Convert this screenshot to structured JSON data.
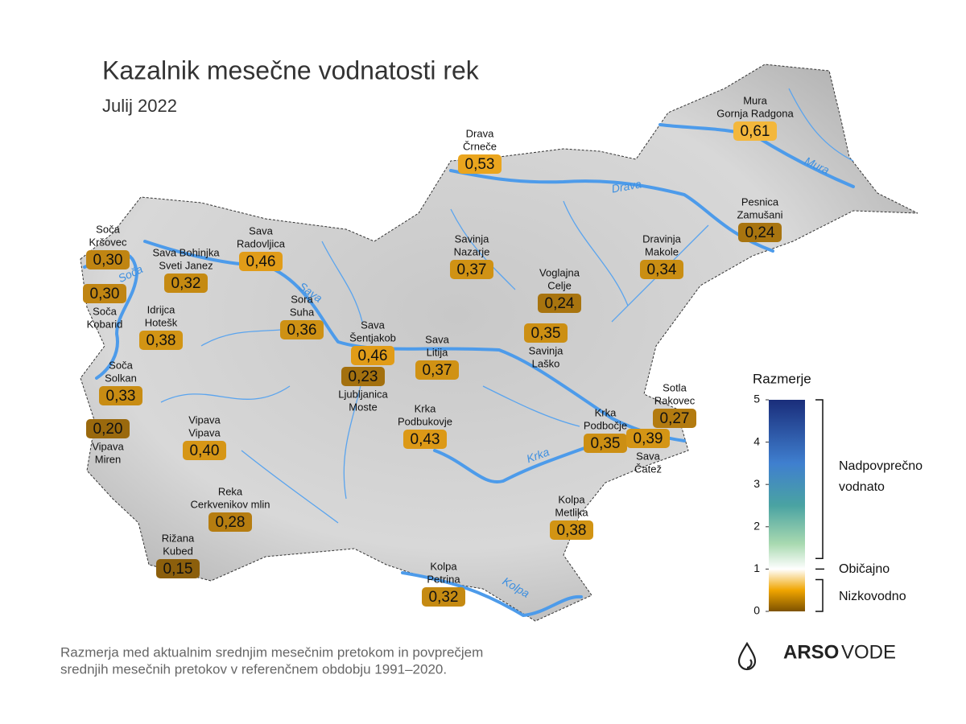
{
  "title": "Kazalnik mesečne vodnatosti rek",
  "subtitle": "Julij 2022",
  "rivers": [
    "Soča",
    "Sava",
    "Drava",
    "Mura",
    "Krka",
    "Kolpa"
  ],
  "stations": [
    {
      "river": "Mura",
      "place": "Gornja Radgona",
      "value": "0,61",
      "color": "#f3b73c"
    },
    {
      "river": "Drava",
      "place": "Črneče",
      "value": "0,53",
      "color": "#eaa51e"
    },
    {
      "river": "Pesnica",
      "place": "Zamušani",
      "value": "0,24",
      "color": "#a8740f"
    },
    {
      "river": "Soča",
      "place": "Kršovec",
      "value": "0,30",
      "color": "#c08512"
    },
    {
      "river": "Sava Bohinjka",
      "place": "Sveti Janez",
      "value": "0,32",
      "color": "#c58a12"
    },
    {
      "river": "Sava",
      "place": "Radovljica",
      "value": "0,46",
      "color": "#e19c18"
    },
    {
      "river": "Savinja",
      "place": "Nazarje",
      "value": "0,37",
      "color": "#d09214"
    },
    {
      "river": "Dravinja",
      "place": "Makole",
      "value": "0,34",
      "color": "#ca8e13"
    },
    {
      "river": "Voglajna",
      "place": "Celje",
      "value": "0,24",
      "color": "#a8740f"
    },
    {
      "river": "Soča",
      "place": "Kobarid",
      "value": "0,30",
      "color": "#c08512"
    },
    {
      "river": "Idrijca",
      "place": "Hotešk",
      "value": "0,38",
      "color": "#d29414"
    },
    {
      "river": "Sora",
      "place": "Suha",
      "value": "0,36",
      "color": "#ce9114"
    },
    {
      "river": "Savinja",
      "place": "Laško",
      "value": "0,35",
      "color": "#cc8f13"
    },
    {
      "river": "Sava",
      "place": "Šentjakob",
      "value": "0,46",
      "color": "#e19c18"
    },
    {
      "river": "Ljubljanica",
      "place": "Moste",
      "value": "0,23",
      "color": "#a3700e"
    },
    {
      "river": "Sava",
      "place": "Litija",
      "value": "0,37",
      "color": "#d09214"
    },
    {
      "river": "Soča",
      "place": "Solkan",
      "value": "0,33",
      "color": "#c88c13"
    },
    {
      "river": "Sotla",
      "place": "Rakovec",
      "value": "0,27",
      "color": "#b37b10"
    },
    {
      "river": "Vipava",
      "place": "Miren",
      "value": "0,20",
      "color": "#9a690d"
    },
    {
      "river": "Krka",
      "place": "Podbukovje",
      "value": "0,43",
      "color": "#dc9917"
    },
    {
      "river": "Krka",
      "place": "Podbočje",
      "value": "0,35",
      "color": "#cc8f13"
    },
    {
      "river": "Sava",
      "place": "Čatež",
      "value": "0,39",
      "color": "#d49515"
    },
    {
      "river": "Vipava",
      "place": "Vipava",
      "value": "0,40",
      "color": "#d69616"
    },
    {
      "river": "Reka",
      "place": "Cerkvenikov mlin",
      "value": "0,28",
      "color": "#b67d10"
    },
    {
      "river": "Kolpa",
      "place": "Metlika",
      "value": "0,38",
      "color": "#d29414"
    },
    {
      "river": "Rižana",
      "place": "Kubed",
      "value": "0,15",
      "color": "#8c5f0c"
    },
    {
      "river": "Kolpa",
      "place": "Petrina",
      "value": "0,32",
      "color": "#c58a12"
    }
  ],
  "legend": {
    "title": "Razmerje",
    "range": [
      0,
      5
    ],
    "ticks": [
      0,
      1,
      2,
      3,
      4,
      5
    ],
    "stops": [
      {
        "value": 0,
        "color": "#7e5200"
      },
      {
        "value": 0.5,
        "color": "#f0a500"
      },
      {
        "value": 1,
        "color": "#ffffff"
      },
      {
        "value": 1.6,
        "color": "#a8d9b0"
      },
      {
        "value": 2.5,
        "color": "#4aa3a2"
      },
      {
        "value": 3.5,
        "color": "#3f7fcf"
      },
      {
        "value": 5,
        "color": "#1a2d7a"
      }
    ],
    "classes": [
      "Nadpovprečno",
      "vodnato",
      "Običajno",
      "Nizkovodno"
    ]
  },
  "footnote": [
    "Razmerja med aktualnim srednjim mesečnim pretokom in povprečjem",
    "srednjih mesečnih pretokov v referenčnem obdobju 1991–2020."
  ],
  "logo": {
    "bold": "ARSO",
    "light": "VODE"
  }
}
